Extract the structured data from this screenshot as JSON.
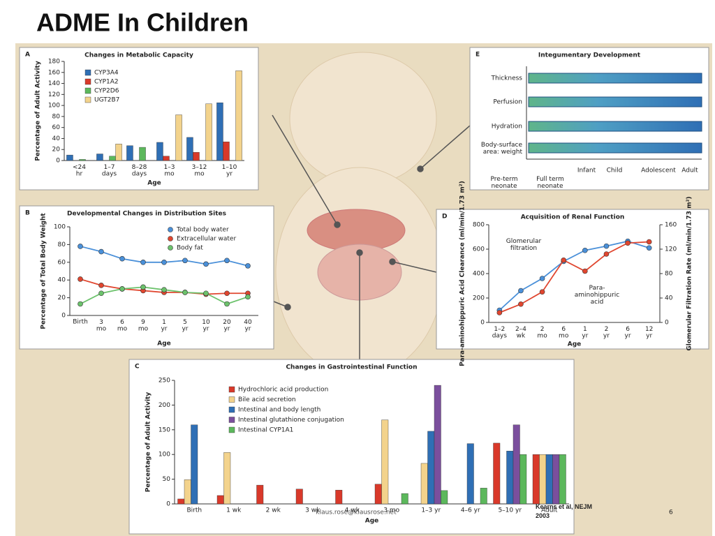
{
  "title": "ADME In Children",
  "citation": "Kearns et al, NEJM\n2003",
  "watermark": "klaus.rose@klausrose.net",
  "page_number": "6",
  "chart_data": [
    {
      "type": "bar",
      "panel": "A",
      "title": "Changes in Metabolic Capacity",
      "categories": [
        "<24\nhr",
        "1–7\ndays",
        "8–28\ndays",
        "1–3\nmo",
        "3–12\nmo",
        "1–10\nyr"
      ],
      "series": [
        {
          "name": "CYP3A4",
          "color": "#2f6fb5",
          "values": [
            10,
            12,
            27,
            33,
            42,
            105
          ]
        },
        {
          "name": "CYP1A2",
          "color": "#d9392a",
          "values": [
            null,
            null,
            null,
            8,
            15,
            34
          ]
        },
        {
          "name": "CYP2D6",
          "color": "#5cb85c",
          "values": [
            2,
            8,
            24,
            null,
            null,
            null
          ]
        },
        {
          "name": "UGT2B7",
          "color": "#f3d38c",
          "values": [
            null,
            30,
            null,
            83,
            103,
            163
          ]
        }
      ],
      "ylim": [
        0,
        180
      ],
      "yticks": [
        0,
        20,
        40,
        60,
        80,
        100,
        120,
        140,
        160,
        180
      ],
      "xlabel": "Age",
      "ylabel": "Percentage of Adult Activity",
      "legend": "upper left"
    },
    {
      "type": "line",
      "panel": "B",
      "title": "Developmental Changes in Distribution Sites",
      "categories": [
        "Birth",
        "3\nmo",
        "6\nmo",
        "9\nmo",
        "1\nyr",
        "5\nyr",
        "10\nyr",
        "20\nyr",
        "40\nyr"
      ],
      "series": [
        {
          "name": "Total body water",
          "color": "#4a90d9",
          "values": [
            78,
            72,
            64,
            60,
            60,
            62,
            58,
            62,
            56
          ]
        },
        {
          "name": "Extracellular water",
          "color": "#e0462f",
          "values": [
            41,
            34,
            30,
            28,
            26,
            26,
            24,
            25,
            25
          ]
        },
        {
          "name": "Body fat",
          "color": "#6cc26c",
          "values": [
            13,
            25,
            30,
            32,
            29,
            26,
            25,
            13,
            21
          ]
        }
      ],
      "ylim": [
        0,
        100
      ],
      "yticks": [
        0,
        20,
        40,
        60,
        80,
        100
      ],
      "xlabel": "Age",
      "ylabel": "Percentage of Total Body Weight",
      "legend": "upper right"
    },
    {
      "type": "bar",
      "panel": "C",
      "title": "Changes in Gastrointestinal Function",
      "categories": [
        "Birth",
        "1 wk",
        "2 wk",
        "3 wk",
        "4 wk",
        "3 mo",
        "1–3 yr",
        "4–6 yr",
        "5–10 yr",
        "Adult"
      ],
      "series": [
        {
          "name": "Hydrochloric acid production",
          "color": "#d9392a",
          "values": [
            10,
            17,
            38,
            30,
            28,
            40,
            null,
            null,
            123,
            100
          ]
        },
        {
          "name": "Bile acid secretion",
          "color": "#f3d38c",
          "values": [
            49,
            104,
            null,
            null,
            null,
            170,
            82,
            null,
            null,
            100
          ]
        },
        {
          "name": "Intestinal and body length",
          "color": "#2f6fb5",
          "values": [
            160,
            null,
            null,
            null,
            null,
            null,
            147,
            122,
            107,
            100
          ]
        },
        {
          "name": "Intestinal glutathione conjugation",
          "color": "#7b4f9d",
          "values": [
            null,
            null,
            null,
            null,
            null,
            null,
            240,
            null,
            160,
            100
          ]
        },
        {
          "name": "Intestinal CYP1A1",
          "color": "#5cb85c",
          "values": [
            null,
            null,
            null,
            null,
            null,
            21,
            27,
            32,
            100,
            100
          ]
        }
      ],
      "ylim": [
        0,
        250
      ],
      "yticks": [
        0,
        50,
        100,
        150,
        200,
        250
      ],
      "xlabel": "Age",
      "ylabel": "Percentage of Adult Activity",
      "legend": "upper left"
    },
    {
      "type": "line",
      "panel": "D",
      "title": "Acquisition of Renal Function",
      "categories": [
        "1–2\ndays",
        "2–4\nwk",
        "2\nmo",
        "6\nmo",
        "1\nyr",
        "2\nyr",
        "6\nyr",
        "12\nyr"
      ],
      "series": [
        {
          "name": "Glomerular\nfiltration",
          "color": "#4a90d9",
          "axis": "y2",
          "values": [
            20,
            52,
            72,
            100,
            118,
            125,
            133,
            122
          ]
        },
        {
          "name": "Para-\naminohippuric\nacid",
          "color": "#e0462f",
          "values": [
            80,
            150,
            250,
            510,
            420,
            560,
            650,
            660
          ]
        }
      ],
      "ylim": [
        0,
        800
      ],
      "yticks": [
        0,
        200,
        400,
        600,
        800
      ],
      "y2lim": [
        0,
        160
      ],
      "y2ticks": [
        0,
        40,
        80,
        120,
        160
      ],
      "xlabel": "Age",
      "ylabel": "Para-aminohippuric Acid Clearance (ml/min/1.73 m²)",
      "y2label": "Glomerular Filtration Rate (ml/min/1.73 m²)"
    },
    {
      "type": "profile",
      "panel": "E",
      "title": "Integumentary Development",
      "rows": [
        "Thickness",
        "Perfusion",
        "Hydration",
        "Body-surface\narea: weight"
      ],
      "categories": [
        "Pre-term\nneonate",
        "Full term\nneonate",
        "Infant",
        "Child",
        "Adolescent",
        "Adult"
      ]
    }
  ]
}
